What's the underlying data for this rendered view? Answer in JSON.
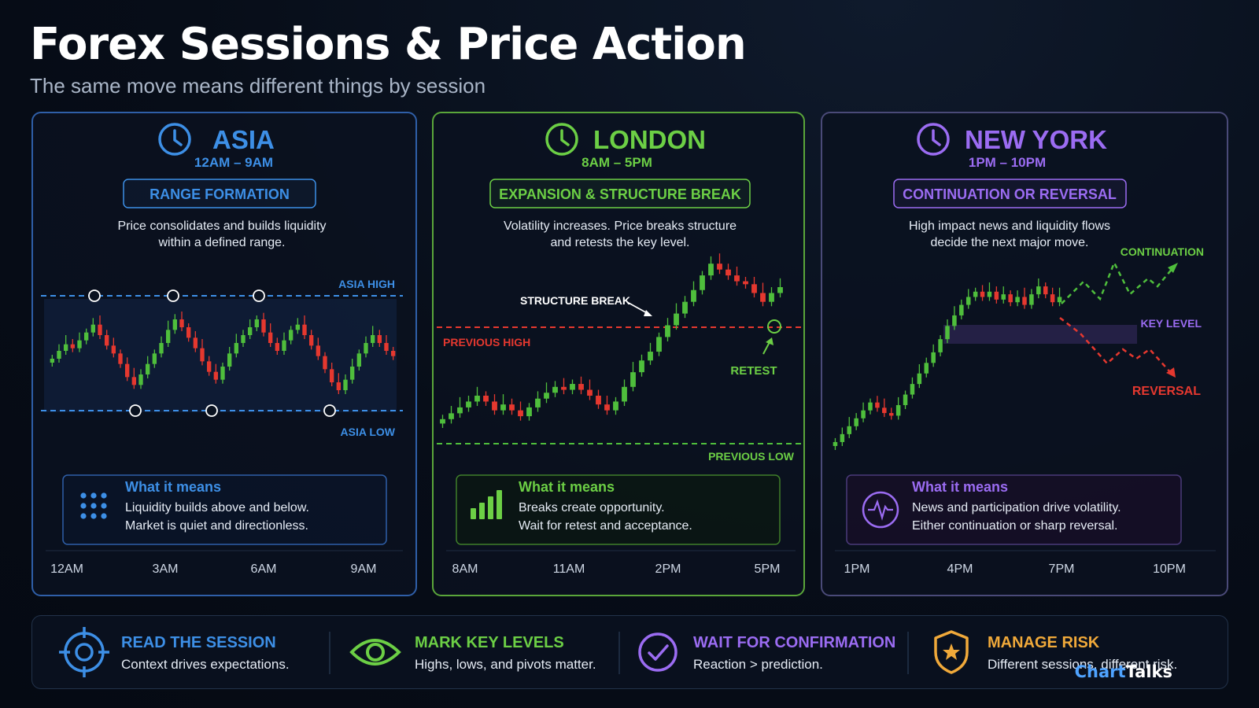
{
  "title": "Forex Sessions & Price Action",
  "subtitle": "The same move means different things by session",
  "colors": {
    "asia": "#3d8fe6",
    "london": "#6ccf45",
    "newyork": "#9b6cf2",
    "bull": "#4fbe3c",
    "bear": "#e5382f",
    "gold": "#f0a93a"
  },
  "sessions": [
    {
      "name": "ASIA",
      "hours": "12AM – 9AM",
      "phase": "RANGE FORMATION",
      "description": [
        "Price consolidates and builds liquidity",
        "within a defined range."
      ],
      "levels": {
        "high": "ASIA HIGH",
        "low": "ASIA LOW"
      },
      "meaning_title": "What it means",
      "meaning": [
        "Liquidity builds above and below.",
        "Market is quiet and directionless."
      ],
      "meaning_icon": "dot-grid-icon",
      "time_ticks": [
        "12AM",
        "3AM",
        "6AM",
        "9AM"
      ]
    },
    {
      "name": "LONDON",
      "hours": "8AM – 5PM",
      "phase": "EXPANSION & STRUCTURE BREAK",
      "description": [
        "Volatility increases. Price breaks structure",
        "and retests the key level."
      ],
      "annotations": {
        "structure_break": "STRUCTURE BREAK",
        "previous_high": "PREVIOUS HIGH",
        "retest": "RETEST",
        "previous_low": "PREVIOUS LOW"
      },
      "meaning_title": "What it means",
      "meaning": [
        "Breaks create opportunity.",
        "Wait for retest and acceptance."
      ],
      "meaning_icon": "signal-bars-icon",
      "time_ticks": [
        "8AM",
        "11AM",
        "2PM",
        "5PM"
      ]
    },
    {
      "name": "NEW YORK",
      "hours": "1PM – 10PM",
      "phase": "CONTINUATION OR REVERSAL",
      "description": [
        "High impact news and liquidity flows",
        "decide the next major move."
      ],
      "annotations": {
        "continuation": "CONTINUATION",
        "key_level": "KEY LEVEL",
        "reversal": "REVERSAL"
      },
      "meaning_title": "What it means",
      "meaning": [
        "News and participation drive volatility.",
        "Either continuation or sharp reversal."
      ],
      "meaning_icon": "pulse-icon",
      "time_ticks": [
        "1PM",
        "4PM",
        "7PM",
        "10PM"
      ]
    }
  ],
  "footer": [
    {
      "title": "READ THE SESSION",
      "body": "Context drives expectations.",
      "icon": "crosshair-icon"
    },
    {
      "title": "MARK KEY LEVELS",
      "body": "Highs, lows, and pivots matter.",
      "icon": "eye-icon"
    },
    {
      "title": "WAIT FOR CONFIRMATION",
      "body": "Reaction > prediction.",
      "icon": "check-circle-icon"
    },
    {
      "title": "MANAGE RISK",
      "body": "Different sessions, different risk.",
      "icon": "shield-icon"
    }
  ],
  "logo": {
    "part1": "Chart",
    "part2": "Talks"
  },
  "chart_data": [
    {
      "type": "candlestick",
      "title": "ASIA",
      "x_ticks": [
        "12AM",
        "3AM",
        "6AM",
        "9AM"
      ],
      "levels": [
        "ASIA HIGH",
        "ASIA LOW"
      ],
      "closes": [
        44,
        50,
        55,
        52,
        58,
        64,
        70,
        62,
        54,
        48,
        40,
        30,
        24,
        32,
        40,
        48,
        56,
        66,
        74,
        68,
        60,
        52,
        42,
        34,
        28,
        38,
        48,
        56,
        62,
        68,
        74,
        64,
        56,
        50,
        58,
        66,
        70,
        62,
        54,
        46,
        36,
        26,
        20,
        28,
        38,
        48,
        56,
        62,
        56,
        50,
        46
      ]
    },
    {
      "type": "candlestick",
      "title": "LONDON",
      "x_ticks": [
        "8AM",
        "11AM",
        "2PM",
        "5PM"
      ],
      "levels": [
        "PREVIOUS HIGH",
        "PREVIOUS LOW"
      ],
      "closes": [
        20,
        24,
        28,
        32,
        36,
        32,
        26,
        30,
        26,
        22,
        28,
        34,
        38,
        42,
        40,
        44,
        40,
        36,
        30,
        26,
        32,
        42,
        52,
        60,
        66,
        76,
        84,
        92,
        100,
        108,
        118,
        126,
        122,
        118,
        114,
        112,
        106,
        100,
        106,
        110
      ]
    },
    {
      "type": "candlestick",
      "title": "NEW YORK",
      "x_ticks": [
        "1PM",
        "4PM",
        "7PM",
        "10PM"
      ],
      "levels": [
        "KEY LEVEL"
      ],
      "scenarios": [
        "CONTINUATION",
        "REVERSAL"
      ],
      "closes": [
        10,
        16,
        22,
        28,
        34,
        40,
        36,
        32,
        30,
        38,
        46,
        54,
        62,
        70,
        78,
        88,
        98,
        106,
        114,
        120,
        124,
        120,
        124,
        118,
        122,
        116,
        120,
        114,
        122,
        128,
        122,
        116,
        120
      ]
    }
  ]
}
